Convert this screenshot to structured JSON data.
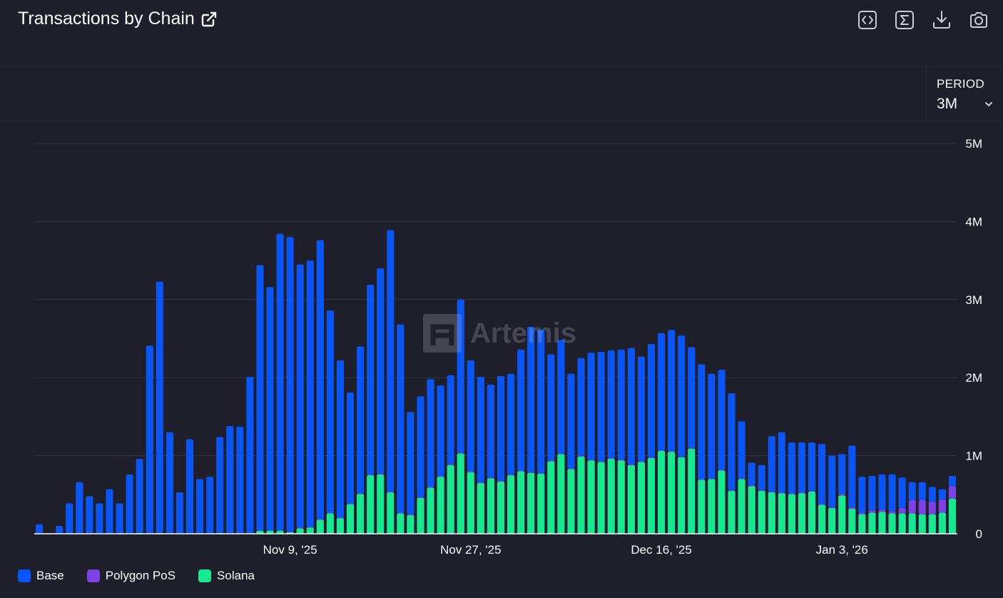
{
  "header": {
    "title": "Transactions by Chain",
    "icons": [
      "external-link-icon",
      "code-icon",
      "sigma-icon",
      "download-icon",
      "camera-icon"
    ]
  },
  "period": {
    "label": "PERIOD",
    "value": "3M"
  },
  "watermark": {
    "text": "Artemis"
  },
  "colors": {
    "background": "#1e1f2b",
    "base": "#0a55f5",
    "polygon": "#7c42e3",
    "solana": "#15e88e",
    "grid": "#33364a"
  },
  "chart_data": {
    "type": "bar",
    "stacked": true,
    "title": "Transactions by Chain",
    "x_start": "2025-10-15",
    "x_tick_labels": [
      {
        "label": "Nov 9, '25",
        "date": "2025-11-09"
      },
      {
        "label": "Nov 27, '25",
        "date": "2025-11-27"
      },
      {
        "label": "Dec 16, '25",
        "date": "2025-12-16"
      },
      {
        "label": "Jan 3, '26",
        "date": "2026-01-03"
      }
    ],
    "y_ticks": [
      {
        "value": 0,
        "label": "0"
      },
      {
        "value": 1000000,
        "label": "1M"
      },
      {
        "value": 2000000,
        "label": "2M"
      },
      {
        "value": 3000000,
        "label": "3M"
      },
      {
        "value": 4000000,
        "label": "4M"
      },
      {
        "value": 5000000,
        "label": "5M"
      }
    ],
    "ylim": [
      0,
      5000000
    ],
    "legend_position": "bottom-left",
    "grid": true,
    "series": [
      {
        "name": "Solana",
        "color": "#15e88e",
        "values": [
          0.0,
          0.0,
          0.0,
          0.0,
          0.0,
          0.0,
          0.0,
          0.0,
          0.0,
          0.0,
          0.01,
          0.0,
          0.01,
          0.0,
          0.0,
          0.0,
          0.0,
          0.0,
          0.01,
          0.0,
          0.0,
          0.0,
          0.04,
          0.04,
          0.04,
          0.02,
          0.07,
          0.08,
          0.18,
          0.26,
          0.2,
          0.38,
          0.51,
          0.75,
          0.76,
          0.53,
          0.26,
          0.24,
          0.46,
          0.59,
          0.73,
          0.88,
          1.03,
          0.79,
          0.65,
          0.71,
          0.67,
          0.75,
          0.8,
          0.78,
          0.77,
          0.93,
          1.02,
          0.83,
          0.99,
          0.94,
          0.92,
          0.96,
          0.94,
          0.88,
          0.92,
          0.97,
          1.06,
          1.05,
          0.98,
          1.09,
          0.69,
          0.7,
          0.81,
          0.55,
          0.7,
          0.61,
          0.55,
          0.53,
          0.52,
          0.51,
          0.52,
          0.54,
          0.37,
          0.33,
          0.49,
          0.32,
          0.25,
          0.27,
          0.28,
          0.26,
          0.26,
          0.26,
          0.25,
          0.25,
          0.27,
          0.45
        ]
      },
      {
        "name": "Polygon PoS",
        "color": "#7c42e3",
        "values": [
          0.0,
          0.0,
          0.0,
          0.0,
          0.0,
          0.0,
          0.0,
          0.0,
          0.0,
          0.0,
          0.0,
          0.0,
          0.0,
          0.0,
          0.0,
          0.0,
          0.0,
          0.0,
          0.0,
          0.0,
          0.0,
          0.0,
          0.0,
          0.0,
          0.0,
          0.01,
          0.01,
          0.01,
          0.01,
          0.01,
          0.01,
          0.01,
          0.01,
          0.01,
          0.01,
          0.01,
          0.01,
          0.01,
          0.01,
          0.01,
          0.01,
          0.01,
          0.01,
          0.01,
          0.01,
          0.01,
          0.01,
          0.01,
          0.01,
          0.01,
          0.01,
          0.01,
          0.01,
          0.01,
          0.01,
          0.01,
          0.01,
          0.01,
          0.01,
          0.01,
          0.01,
          0.01,
          0.01,
          0.01,
          0.01,
          0.01,
          0.01,
          0.01,
          0.01,
          0.01,
          0.01,
          0.01,
          0.01,
          0.01,
          0.01,
          0.01,
          0.01,
          0.01,
          0.01,
          0.01,
          0.02,
          0.02,
          0.02,
          0.03,
          0.03,
          0.03,
          0.07,
          0.17,
          0.18,
          0.16,
          0.17,
          0.16
        ]
      },
      {
        "name": "Base",
        "color": "#0a55f5",
        "values": [
          0.12,
          0.0,
          0.1,
          0.39,
          0.66,
          0.48,
          0.39,
          0.57,
          0.39,
          0.76,
          0.95,
          2.41,
          3.22,
          1.3,
          0.53,
          1.21,
          0.7,
          0.73,
          1.23,
          1.38,
          1.37,
          2.01,
          3.4,
          3.12,
          3.8,
          3.77,
          3.37,
          3.41,
          3.57,
          2.59,
          2.01,
          1.42,
          1.88,
          2.43,
          2.63,
          3.35,
          2.41,
          1.31,
          1.29,
          1.38,
          1.16,
          1.14,
          1.96,
          1.42,
          1.35,
          1.19,
          1.34,
          1.29,
          1.55,
          1.86,
          1.83,
          1.36,
          1.45,
          1.21,
          1.25,
          1.37,
          1.4,
          1.38,
          1.41,
          1.49,
          1.34,
          1.45,
          1.5,
          1.55,
          1.55,
          1.29,
          1.47,
          1.34,
          1.28,
          1.24,
          0.73,
          0.29,
          0.32,
          0.71,
          0.77,
          0.65,
          0.64,
          0.62,
          0.77,
          0.66,
          0.51,
          0.79,
          0.46,
          0.44,
          0.45,
          0.47,
          0.39,
          0.23,
          0.23,
          0.19,
          0.13,
          0.13
        ]
      }
    ],
    "value_unit_multiplier": 1000000
  },
  "legend": [
    {
      "name": "Base",
      "color": "#0a55f5"
    },
    {
      "name": "Polygon PoS",
      "color": "#7c42e3"
    },
    {
      "name": "Solana",
      "color": "#15e88e"
    }
  ]
}
